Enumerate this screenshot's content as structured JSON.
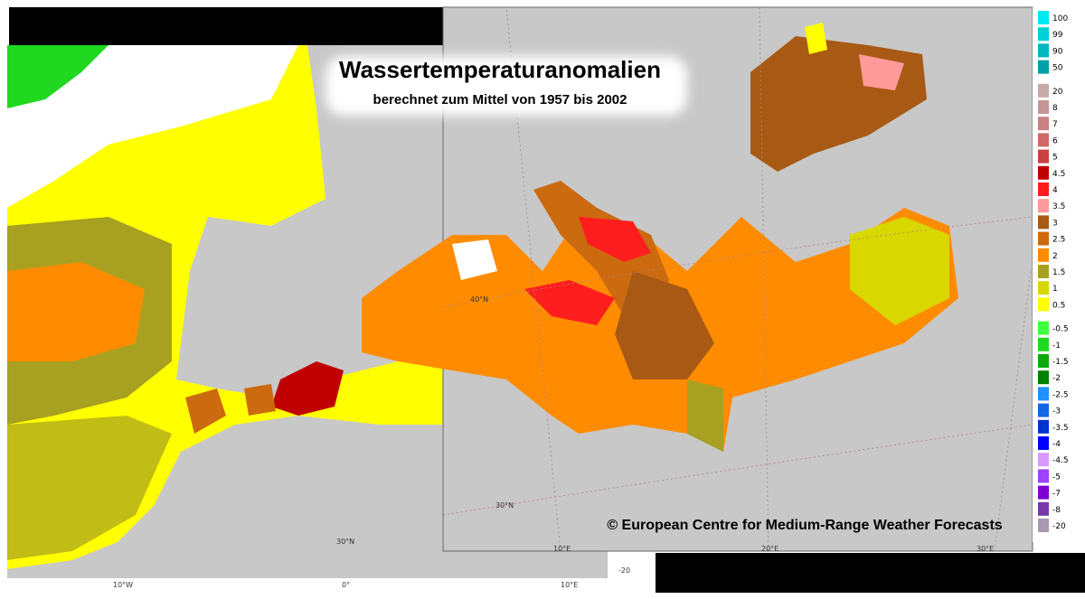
{
  "title": "Wassertemperaturanomalien",
  "subtitle": "berechnet zum Mittel von 1957 bis 2002",
  "copyright": "© European Centre for Medium-Range Weather Forecasts",
  "legend": {
    "items": [
      {
        "label": "100",
        "color": "#00e8f0"
      },
      {
        "label": "99",
        "color": "#00d0d8"
      },
      {
        "label": "90",
        "color": "#00b8c0"
      },
      {
        "label": "50",
        "color": "#00a0a8"
      },
      {
        "label": "20",
        "color": "#c8aaaa"
      },
      {
        "label": "8",
        "color": "#c49696"
      },
      {
        "label": "7",
        "color": "#c88080"
      },
      {
        "label": "6",
        "color": "#d06868"
      },
      {
        "label": "5",
        "color": "#c84040"
      },
      {
        "label": "4.5",
        "color": "#c00000"
      },
      {
        "label": "4",
        "color": "#ff1e1e"
      },
      {
        "label": "3.5",
        "color": "#ff9a9a"
      },
      {
        "label": "3",
        "color": "#a85a14"
      },
      {
        "label": "2.5",
        "color": "#cc6a10"
      },
      {
        "label": "2",
        "color": "#ff8c00"
      },
      {
        "label": "1.5",
        "color": "#a8a020"
      },
      {
        "label": "1",
        "color": "#d8d800"
      },
      {
        "label": "0.5",
        "color": "#ffff00"
      },
      {
        "label": "-0.5",
        "color": "#40ff40"
      },
      {
        "label": "-1",
        "color": "#20d820"
      },
      {
        "label": "-1.5",
        "color": "#10a810"
      },
      {
        "label": "-2",
        "color": "#008000"
      },
      {
        "label": "-2.5",
        "color": "#2090ff"
      },
      {
        "label": "-3",
        "color": "#1464e6"
      },
      {
        "label": "-3.5",
        "color": "#0032d2"
      },
      {
        "label": "-4",
        "color": "#0000ff"
      },
      {
        "label": "-4.5",
        "color": "#d89aff"
      },
      {
        "label": "-5",
        "color": "#a040ff"
      },
      {
        "label": "-7",
        "color": "#8000d0"
      },
      {
        "label": "-8",
        "color": "#7838a8"
      },
      {
        "label": "-20",
        "color": "#a898b0"
      }
    ]
  },
  "right_map_labels": [
    "40°N",
    "30°N",
    "10°E",
    "20°E",
    "30°E"
  ],
  "left_map_labels": [
    "30°N",
    "10°W",
    "0°",
    "10°E",
    "-20"
  ]
}
